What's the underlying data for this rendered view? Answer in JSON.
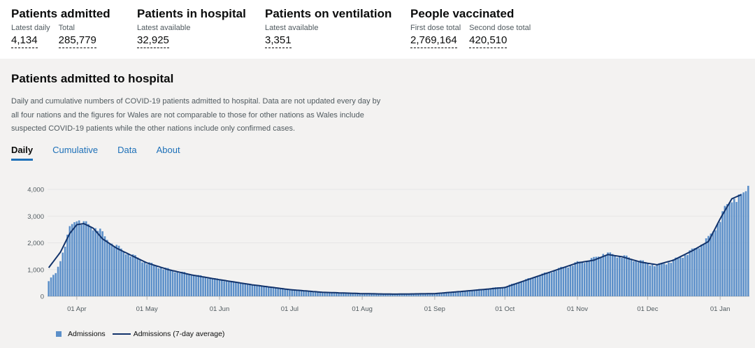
{
  "headlines": [
    {
      "title": "Patients admitted",
      "metrics": [
        {
          "label": "Latest daily",
          "value": "4,134"
        },
        {
          "label": "Total",
          "value": "285,779"
        }
      ]
    },
    {
      "title": "Patients in hospital",
      "metrics": [
        {
          "label": "Latest available",
          "value": "32,925"
        }
      ]
    },
    {
      "title": "Patients on ventilation",
      "metrics": [
        {
          "label": "Latest available",
          "value": "3,351"
        }
      ]
    },
    {
      "title": "People vaccinated",
      "metrics": [
        {
          "label": "First dose total",
          "value": "2,769,164"
        },
        {
          "label": "Second dose total",
          "value": "420,510"
        }
      ]
    }
  ],
  "panel": {
    "title": "Patients admitted to hospital",
    "description": "Daily and cumulative numbers of COVID-19 patients admitted to hospital. Data are not updated every day by all four nations and the figures for Wales are not comparable to those for other nations as Wales include suspected COVID-19 patients while the other nations include only confirmed cases.",
    "tabs": [
      "Daily",
      "Cumulative",
      "Data",
      "About"
    ],
    "active_tab": "Daily"
  },
  "chart_data": {
    "type": "bar",
    "x_ticks": [
      "01 Apr",
      "01 May",
      "01 Jun",
      "01 Jul",
      "01 Aug",
      "01 Sep",
      "01 Oct",
      "01 Nov",
      "01 Dec",
      "01 Jan"
    ],
    "y_ticks": [
      "0",
      "1,000",
      "2,000",
      "3,000",
      "4,000"
    ],
    "ylim": [
      0,
      4200
    ],
    "x_start": "2020-03-20",
    "x_end": "2021-01-13",
    "colors": {
      "bars": "#5b8fc9",
      "line": "#12336b"
    },
    "series": [
      {
        "name": "Admissions",
        "type": "bar",
        "keypoints": [
          [
            "2020-03-20",
            590
          ],
          [
            "2020-03-23",
            850
          ],
          [
            "2020-03-26",
            1650
          ],
          [
            "2020-03-29",
            2500
          ],
          [
            "2020-04-01",
            2950
          ],
          [
            "2020-04-04",
            2700
          ],
          [
            "2020-04-07",
            2620
          ],
          [
            "2020-04-10",
            2550
          ],
          [
            "2020-04-13",
            2200
          ],
          [
            "2020-04-18",
            1850
          ],
          [
            "2020-04-24",
            1550
          ],
          [
            "2020-05-01",
            1250
          ],
          [
            "2020-05-08",
            1050
          ],
          [
            "2020-05-15",
            900
          ],
          [
            "2020-05-22",
            780
          ],
          [
            "2020-06-01",
            620
          ],
          [
            "2020-06-15",
            430
          ],
          [
            "2020-07-01",
            260
          ],
          [
            "2020-07-15",
            140
          ],
          [
            "2020-08-01",
            90
          ],
          [
            "2020-08-15",
            80
          ],
          [
            "2020-09-01",
            110
          ],
          [
            "2020-09-15",
            210
          ],
          [
            "2020-10-01",
            360
          ],
          [
            "2020-10-15",
            760
          ],
          [
            "2020-11-01",
            1250
          ],
          [
            "2020-11-08",
            1400
          ],
          [
            "2020-11-12",
            1600
          ],
          [
            "2020-11-20",
            1500
          ],
          [
            "2020-11-28",
            1300
          ],
          [
            "2020-12-05",
            1150
          ],
          [
            "2020-12-12",
            1330
          ],
          [
            "2020-12-20",
            1700
          ],
          [
            "2020-12-27",
            2150
          ],
          [
            "2021-01-01",
            2900
          ],
          [
            "2021-01-06",
            3700
          ],
          [
            "2021-01-10",
            3650
          ],
          [
            "2021-01-13",
            4134
          ]
        ]
      },
      {
        "name": "Admissions (7-day average)",
        "type": "line",
        "keypoints": [
          [
            "2020-03-20",
            1070
          ],
          [
            "2020-03-25",
            1650
          ],
          [
            "2020-03-29",
            2350
          ],
          [
            "2020-04-01",
            2680
          ],
          [
            "2020-04-04",
            2720
          ],
          [
            "2020-04-08",
            2550
          ],
          [
            "2020-04-12",
            2150
          ],
          [
            "2020-04-18",
            1800
          ],
          [
            "2020-04-25",
            1500
          ],
          [
            "2020-05-01",
            1250
          ],
          [
            "2020-05-10",
            1000
          ],
          [
            "2020-05-20",
            800
          ],
          [
            "2020-06-01",
            620
          ],
          [
            "2020-06-15",
            430
          ],
          [
            "2020-07-01",
            250
          ],
          [
            "2020-07-15",
            150
          ],
          [
            "2020-08-01",
            100
          ],
          [
            "2020-08-15",
            80
          ],
          [
            "2020-09-01",
            100
          ],
          [
            "2020-09-15",
            200
          ],
          [
            "2020-10-01",
            330
          ],
          [
            "2020-10-15",
            750
          ],
          [
            "2020-11-01",
            1250
          ],
          [
            "2020-11-08",
            1350
          ],
          [
            "2020-11-14",
            1560
          ],
          [
            "2020-11-20",
            1480
          ],
          [
            "2020-11-28",
            1280
          ],
          [
            "2020-12-05",
            1180
          ],
          [
            "2020-12-12",
            1350
          ],
          [
            "2020-12-20",
            1700
          ],
          [
            "2020-12-27",
            2050
          ],
          [
            "2021-01-01",
            2900
          ],
          [
            "2021-01-06",
            3650
          ],
          [
            "2021-01-10",
            3800
          ]
        ]
      }
    ],
    "legend": [
      "Admissions",
      "Admissions (7-day average)"
    ]
  }
}
